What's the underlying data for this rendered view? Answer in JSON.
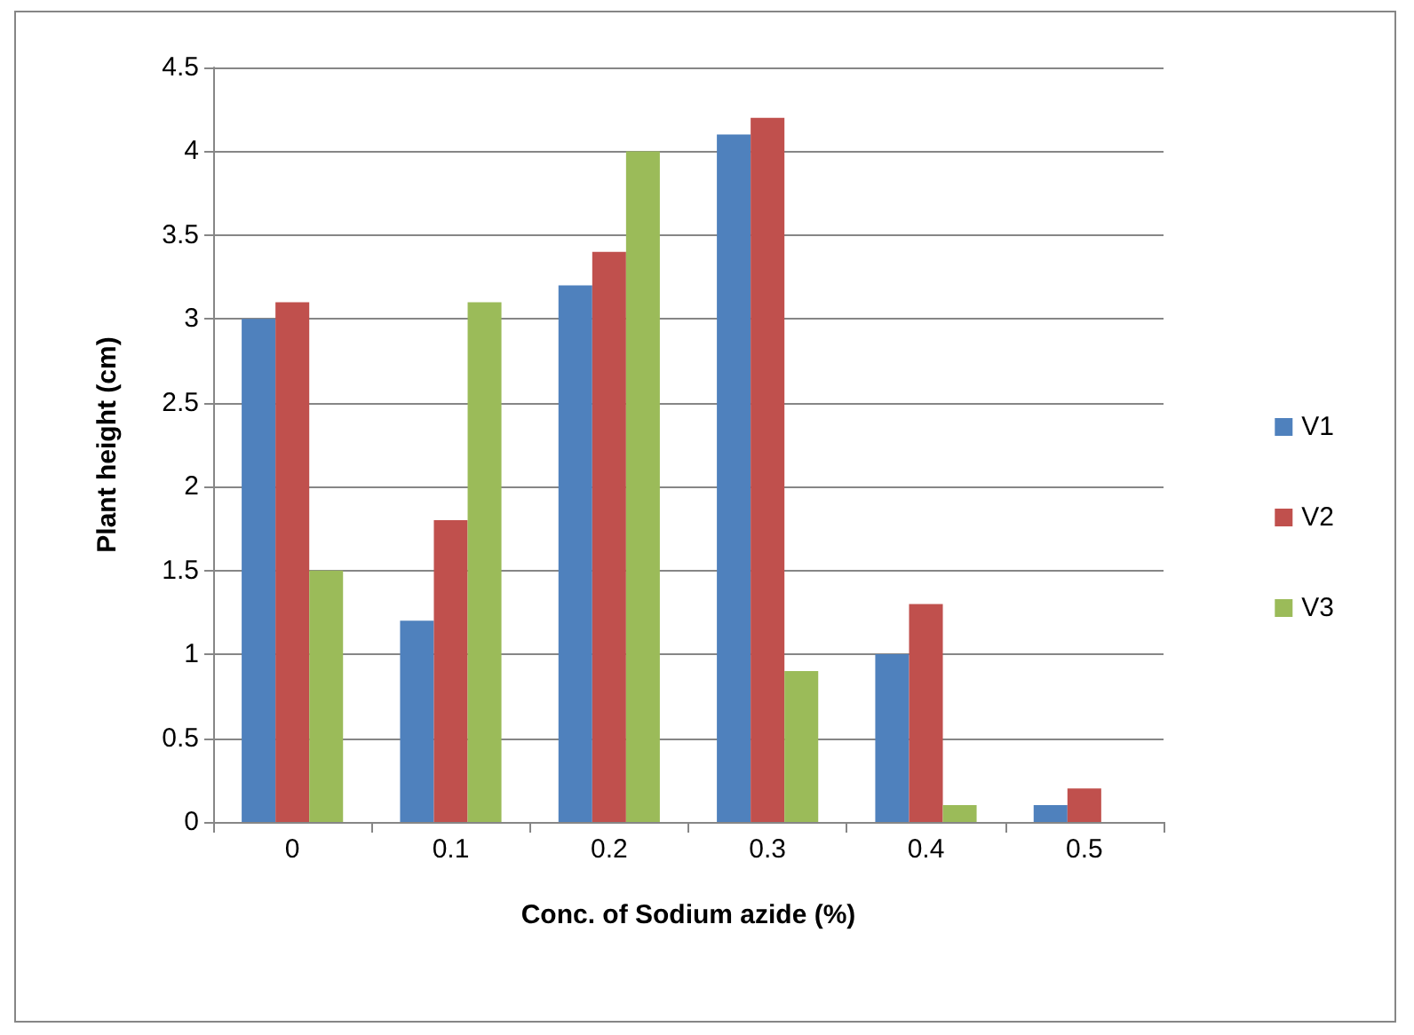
{
  "chart_data": {
    "type": "bar",
    "xlabel": "Conc. of Sodium azide (%)",
    "ylabel": "Plant height (cm)",
    "categories": [
      "0",
      "0.1",
      "0.2",
      "0.3",
      "0.4",
      "0.5"
    ],
    "series": [
      {
        "name": "V1",
        "color": "#4f81bd",
        "values": [
          3.0,
          1.2,
          3.2,
          4.1,
          1.0,
          0.1
        ]
      },
      {
        "name": "V2",
        "color": "#c0504d",
        "values": [
          3.1,
          1.8,
          3.4,
          4.2,
          1.3,
          0.2
        ]
      },
      {
        "name": "V3",
        "color": "#9bbb59",
        "values": [
          1.5,
          3.1,
          4.0,
          0.9,
          0.1,
          0
        ]
      }
    ],
    "ylim": [
      0,
      4.5
    ],
    "yticks": [
      0,
      0.5,
      1,
      1.5,
      2,
      2.5,
      3,
      3.5,
      4,
      4.5
    ],
    "grid": "y",
    "legend": "right"
  }
}
